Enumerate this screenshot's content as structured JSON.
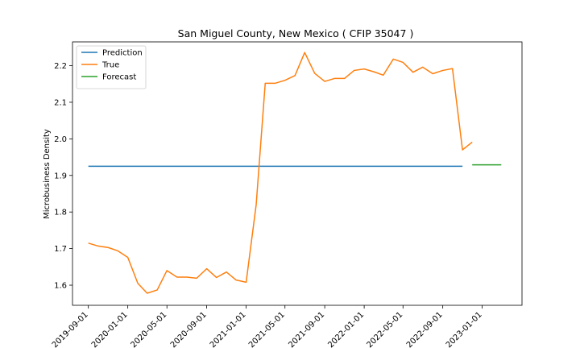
{
  "chart_data": {
    "type": "line",
    "title": "San Miguel County, New Mexico ( CFIP 35047 )",
    "xlabel": "",
    "ylabel": "Microbusiness Density",
    "xlim": [
      "2019-07-14",
      "2023-05-04"
    ],
    "ylim": [
      1.545,
      2.265
    ],
    "x_ticks": [
      "2019-09-01",
      "2020-01-01",
      "2020-05-01",
      "2020-09-01",
      "2021-01-01",
      "2021-05-01",
      "2021-09-01",
      "2022-01-01",
      "2022-05-01",
      "2022-09-01",
      "2023-01-01"
    ],
    "y_ticks": [
      1.6,
      1.7,
      1.8,
      1.9,
      2.0,
      2.1,
      2.2
    ],
    "y_tick_labels": [
      "1.6",
      "1.7",
      "1.8",
      "1.9",
      "2.0",
      "2.1",
      "2.2"
    ],
    "grid": false,
    "legend_position": "top-left",
    "series": [
      {
        "name": "Prediction",
        "color": "#1f77b4",
        "x": [
          "2019-09-01",
          "2022-11-01"
        ],
        "y": [
          1.925,
          1.925
        ]
      },
      {
        "name": "True",
        "color": "#ff7f0e",
        "x": [
          "2019-09-01",
          "2019-10-01",
          "2019-11-01",
          "2019-12-01",
          "2020-01-01",
          "2020-02-01",
          "2020-03-01",
          "2020-04-01",
          "2020-05-01",
          "2020-06-01",
          "2020-07-01",
          "2020-08-01",
          "2020-09-01",
          "2020-10-01",
          "2020-11-01",
          "2020-12-01",
          "2021-01-01",
          "2021-02-01",
          "2021-03-01",
          "2021-04-01",
          "2021-05-01",
          "2021-06-01",
          "2021-07-01",
          "2021-08-01",
          "2021-09-01",
          "2021-10-01",
          "2021-11-01",
          "2021-12-01",
          "2022-01-01",
          "2022-02-01",
          "2022-03-01",
          "2022-04-01",
          "2022-05-01",
          "2022-06-01",
          "2022-07-01",
          "2022-08-01",
          "2022-09-01",
          "2022-10-01",
          "2022-11-01",
          "2022-12-01"
        ],
        "y": [
          1.715,
          1.707,
          1.703,
          1.694,
          1.676,
          1.605,
          1.578,
          1.587,
          1.64,
          1.622,
          1.622,
          1.619,
          1.645,
          1.621,
          1.636,
          1.614,
          1.608,
          1.82,
          2.152,
          2.152,
          2.16,
          2.173,
          2.236,
          2.179,
          2.157,
          2.165,
          2.165,
          2.187,
          2.191,
          2.183,
          2.174,
          2.218,
          2.209,
          2.182,
          2.196,
          2.178,
          2.187,
          2.192,
          1.97,
          1.991
        ]
      },
      {
        "name": "Forecast",
        "color": "#2ca02c",
        "x": [
          "2022-12-01",
          "2023-03-01"
        ],
        "y": [
          1.929,
          1.929
        ]
      }
    ]
  }
}
